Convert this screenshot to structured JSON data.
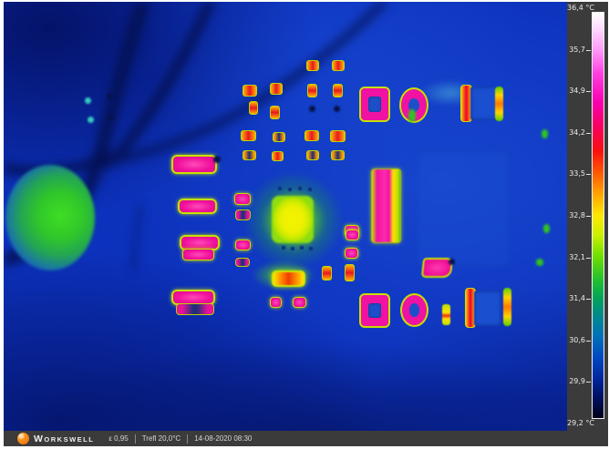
{
  "scale": {
    "unit": "°C",
    "max": "36,4",
    "min": "29,2",
    "labels": [
      "36,4 °C",
      "35,7",
      "34,9",
      "34,2",
      "33,5",
      "32,8",
      "32,1",
      "31,4",
      "30,6",
      "29,9",
      "29,2 °C"
    ]
  },
  "statusbar": {
    "brand_w": "W",
    "brand_rest": "ORKSWELL",
    "emissivity": "ε 0,95",
    "reflected_temp": "Trefl 20,0°C",
    "datetime": "14-08-2020 08:30"
  },
  "colors": {
    "panel_gray": "#3b3b3b",
    "hot_magenta": "#f012a2",
    "outline_yellow": "#c6e000",
    "chip_yellow": "#eef000",
    "background_blue": "#0c31bc",
    "brand_orange": "#f08021"
  }
}
